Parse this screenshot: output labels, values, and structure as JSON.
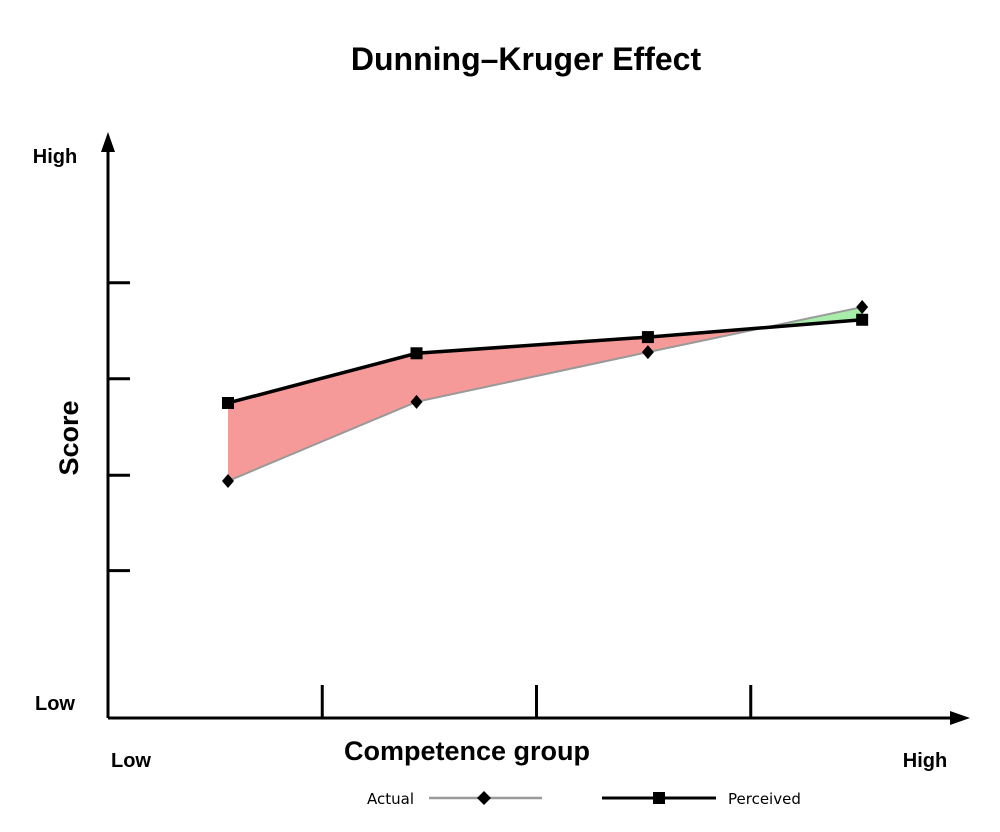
{
  "chart_data": {
    "type": "line",
    "title": "Dunning–Kruger Effect",
    "xlabel": "Competence group",
    "ylabel": "Score",
    "x_low_label": "Low",
    "x_high_label": "High",
    "y_low_label": "Low",
    "y_high_label": "High",
    "xlim": [
      0,
      100
    ],
    "ylim": [
      0,
      100
    ],
    "x_ticks": [
      25,
      50,
      75
    ],
    "y_ticks": [
      25.5,
      42,
      58.7,
      75.3
    ],
    "grid": false,
    "legend_position": "bottom",
    "x": [
      14,
      36,
      63,
      88
    ],
    "series": [
      {
        "name": "Actual",
        "values": [
          41,
          54.7,
          63.3,
          71.1
        ],
        "color": "#999999",
        "marker": "diamond"
      },
      {
        "name": "Perceived",
        "values": [
          54.5,
          63.1,
          65.9,
          68.9
        ],
        "color": "#000000",
        "marker": "square"
      }
    ],
    "fill_overestimate_color": "#f59a98",
    "fill_underestimate_color": "#a8eeaa"
  }
}
